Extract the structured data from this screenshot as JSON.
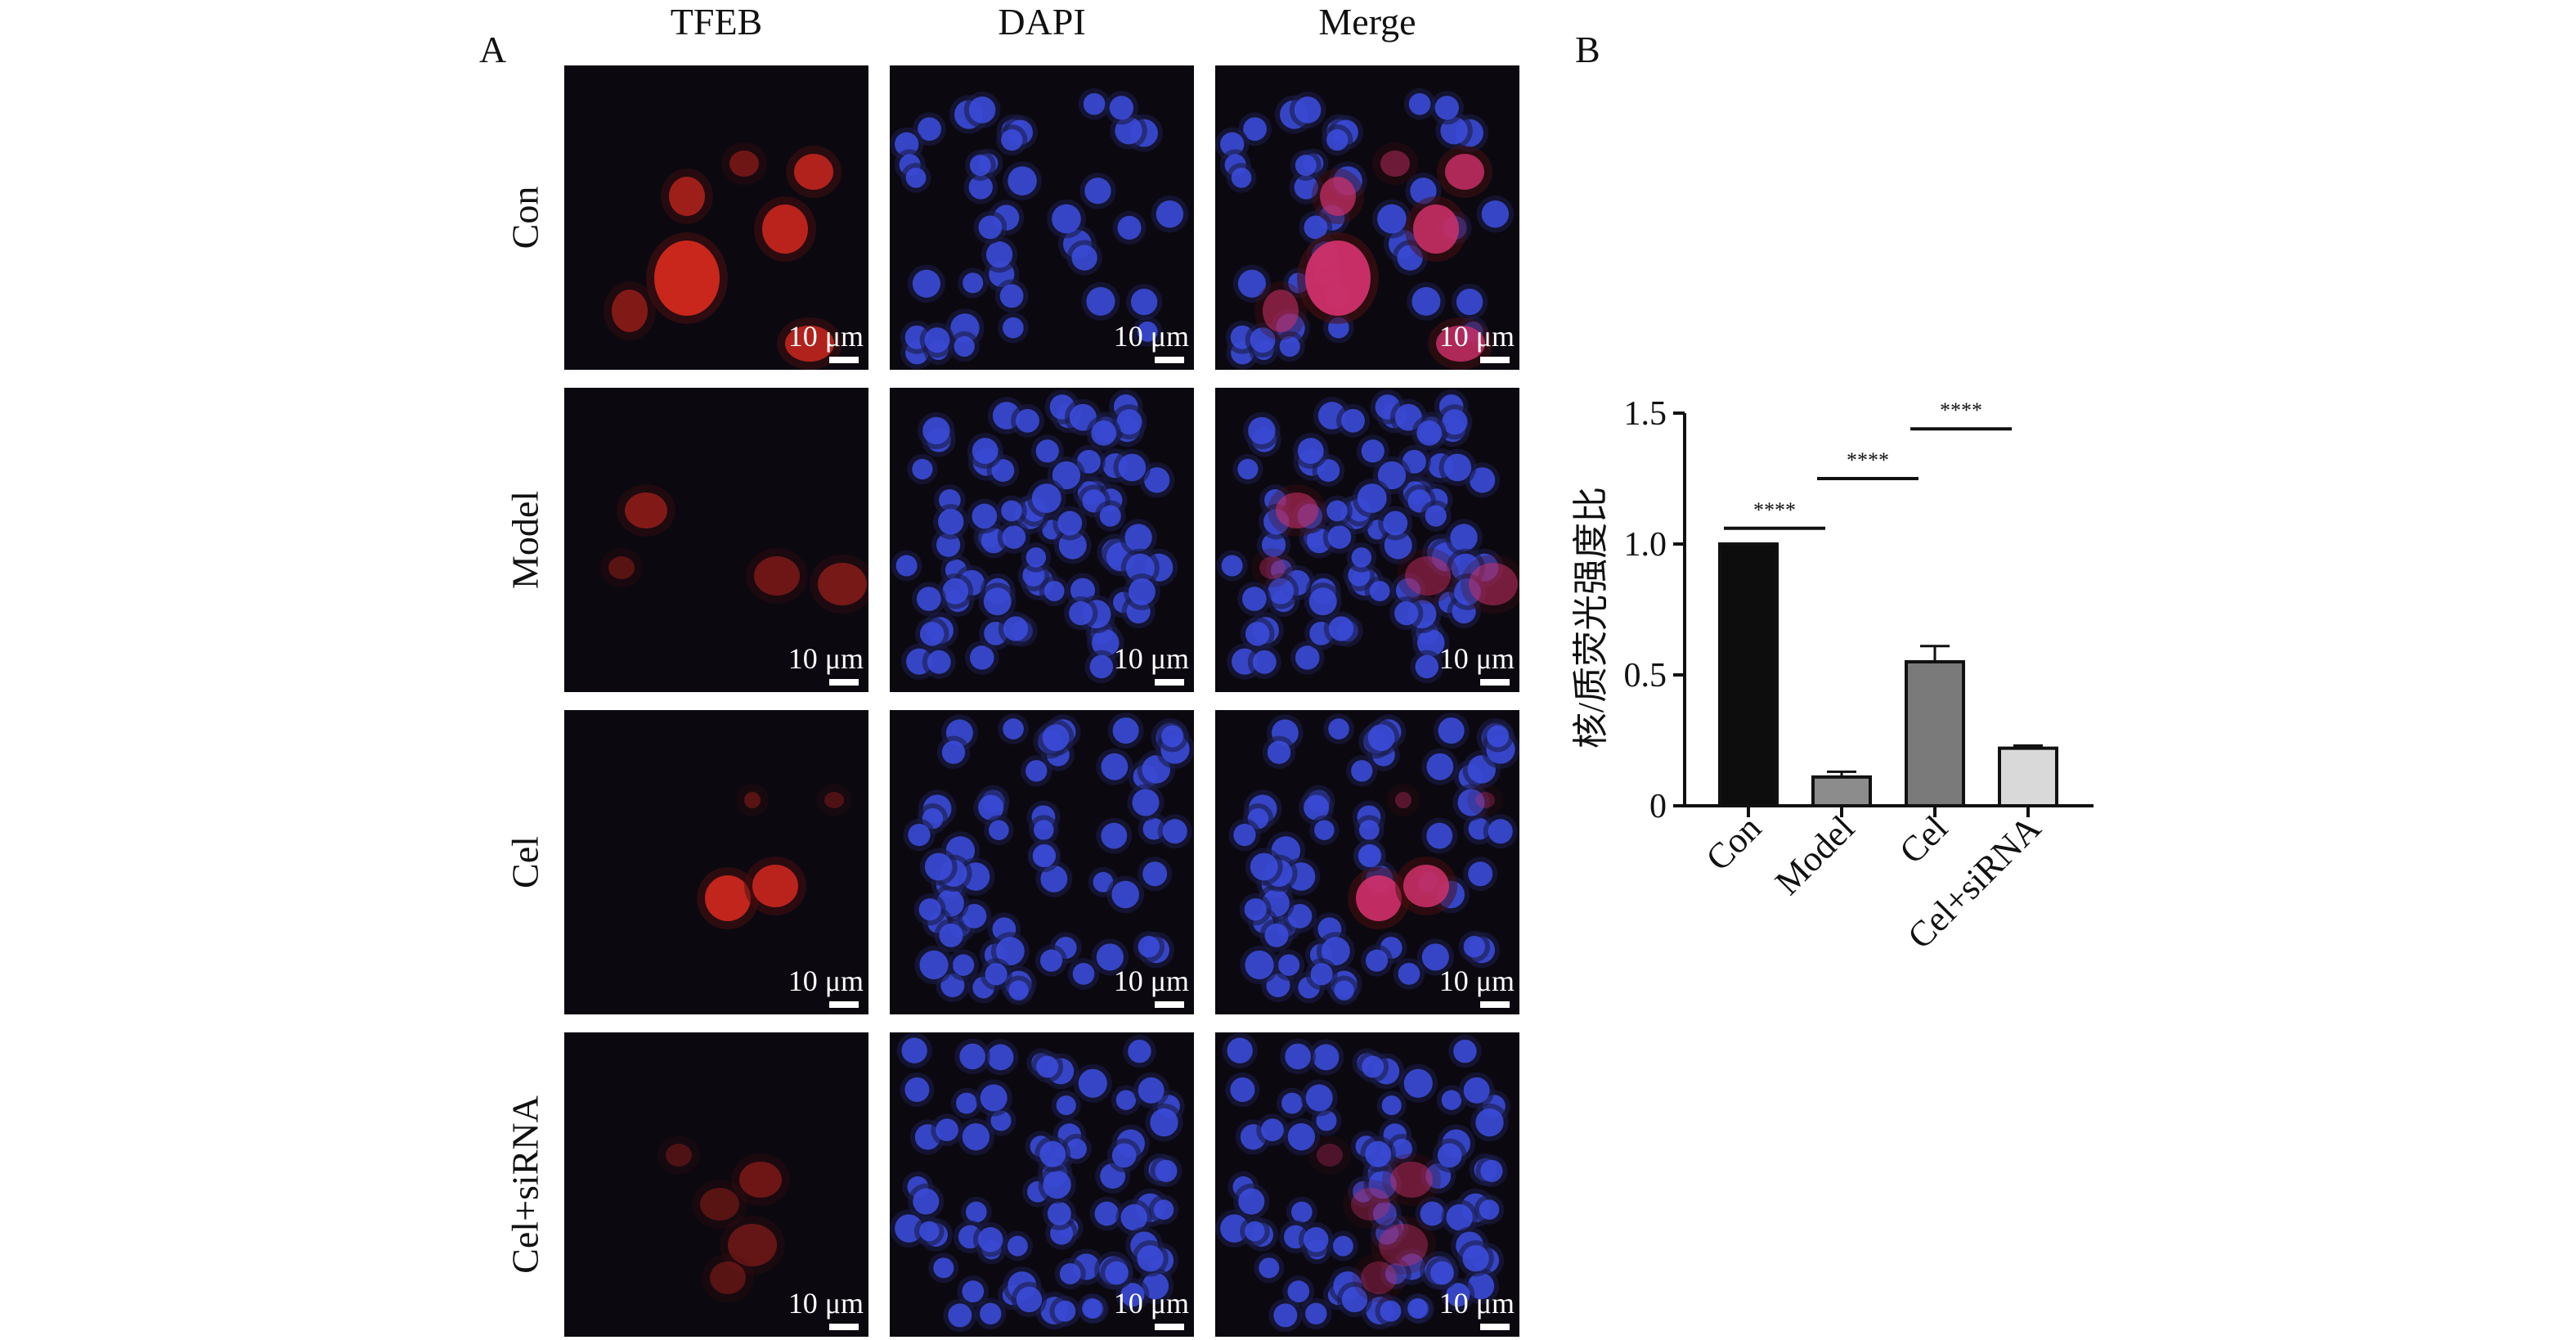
{
  "panel_labels": {
    "a": "A",
    "b": "B"
  },
  "columns": [
    "TFEB",
    "DAPI",
    "Merge"
  ],
  "rows": [
    "Con",
    "Model",
    "Cel",
    "Cel+siRNA"
  ],
  "scale_label": "10 μm",
  "colors": {
    "tfeb": "#d2281e",
    "dapi": "#3c4ee0",
    "background": "#0b0810"
  },
  "chart_data": {
    "type": "bar",
    "title": "",
    "xlabel": "",
    "ylabel": "核/质荧光强度比",
    "categories": [
      "Con",
      "Model",
      "Cel",
      "Cel+siRNA"
    ],
    "values": [
      1.0,
      0.11,
      0.55,
      0.22
    ],
    "errors": [
      0.0,
      0.02,
      0.06,
      0.01
    ],
    "ylim": [
      0,
      1.5
    ],
    "yticks": [
      0,
      0.5,
      1.0,
      1.5
    ],
    "ytick_labels": [
      "0",
      "0.5",
      "1.0",
      "1.5"
    ],
    "bar_colors": [
      "#0d0d0d",
      "#8c8c8c",
      "#7a7a7a",
      "#d9d9d9"
    ],
    "significance": [
      {
        "from": 0,
        "to": 1,
        "label": "****",
        "y": 1.06
      },
      {
        "from": 1,
        "to": 2,
        "label": "****",
        "y": 1.25
      },
      {
        "from": 2,
        "to": 3,
        "label": "****",
        "y": 1.44
      }
    ],
    "grid": false,
    "legend": "none"
  }
}
